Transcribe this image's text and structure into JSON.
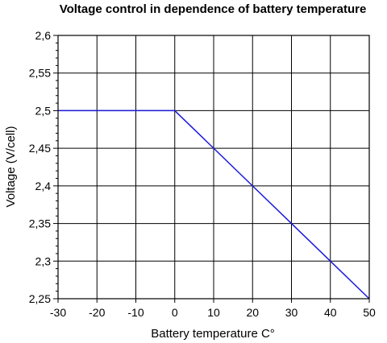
{
  "chart_data": {
    "type": "line",
    "title": "Voltage control in dependence of battery temperature",
    "xlabel": "Battery temperature C°",
    "ylabel": "Voltage (V/cell)",
    "xlim": [
      -30,
      50
    ],
    "ylim": [
      2.25,
      2.6
    ],
    "x_ticks": [
      -30,
      -20,
      -10,
      0,
      10,
      20,
      30,
      40,
      50
    ],
    "x_tick_labels": [
      "-30",
      "-20",
      "-10",
      "0",
      "10",
      "20",
      "30",
      "40",
      "50"
    ],
    "y_ticks": [
      2.25,
      2.3,
      2.35,
      2.4,
      2.45,
      2.5,
      2.55,
      2.6
    ],
    "y_tick_labels": [
      "2,25",
      "2,3",
      "2,35",
      "2,4",
      "2,45",
      "2,5",
      "2,55",
      "2,6"
    ],
    "grid": true,
    "series": [
      {
        "color": "#1a1adc",
        "x": [
          -30,
          0,
          10,
          20,
          30,
          40,
          50
        ],
        "y": [
          2.5,
          2.5,
          2.45,
          2.4,
          2.35,
          2.3,
          2.25
        ]
      }
    ]
  }
}
